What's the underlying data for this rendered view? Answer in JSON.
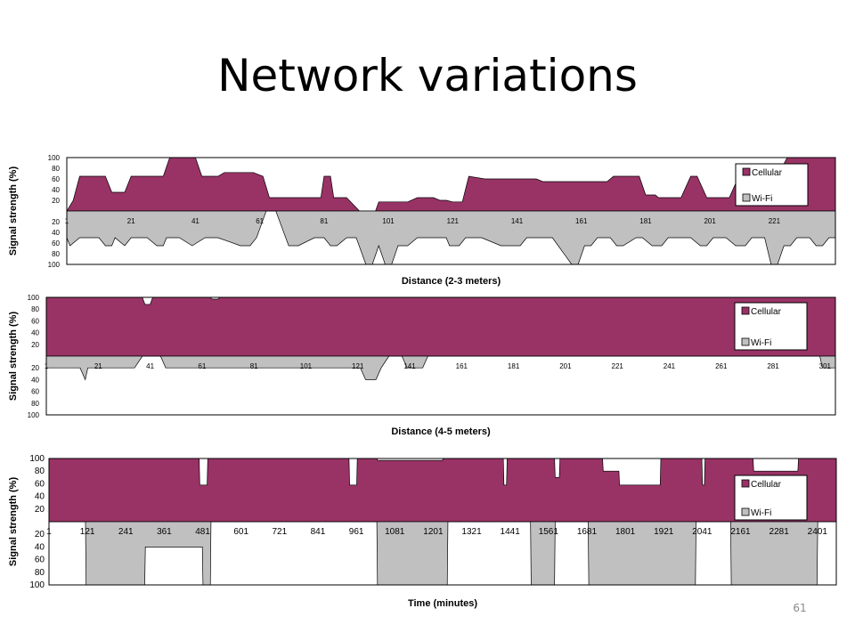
{
  "slide": {
    "title": "Network variations",
    "page_number": "61"
  },
  "colors": {
    "cellular": "#993366",
    "wifi": "#c0c0c0",
    "border": "#000000",
    "background": "#ffffff"
  },
  "chart_data": [
    {
      "type": "area",
      "layout": "mirrored",
      "xlabel": "Distance (2-3 meters)",
      "ylabel": "Signal strength (%)",
      "x_ticks": [
        "1",
        "21",
        "41",
        "61",
        "81",
        "101",
        "121",
        "141",
        "161",
        "181",
        "201",
        "221"
      ],
      "ylim": [
        0,
        100
      ],
      "y_ticks": [
        "20",
        "40",
        "60",
        "80",
        "100"
      ],
      "legend": {
        "position": "inside-right",
        "entries": [
          "Cellular",
          "Wi-Fi"
        ]
      },
      "x_count": 240,
      "series": [
        {
          "name": "Cellular",
          "direction": "up",
          "points": [
            [
              1,
              0
            ],
            [
              3,
              20
            ],
            [
              5,
              65
            ],
            [
              13,
              65
            ],
            [
              15,
              35
            ],
            [
              19,
              35
            ],
            [
              21,
              65
            ],
            [
              31,
              65
            ],
            [
              33,
              100
            ],
            [
              41,
              100
            ],
            [
              43,
              65
            ],
            [
              48,
              65
            ],
            [
              50,
              72
            ],
            [
              59,
              72
            ],
            [
              62,
              65
            ],
            [
              64,
              25
            ],
            [
              80,
              25
            ],
            [
              81,
              65
            ],
            [
              83,
              65
            ],
            [
              84,
              25
            ],
            [
              88,
              25
            ],
            [
              92,
              0
            ],
            [
              97,
              0
            ],
            [
              98,
              17
            ],
            [
              107,
              17
            ],
            [
              110,
              25
            ],
            [
              115,
              25
            ],
            [
              117,
              20
            ],
            [
              119,
              20
            ],
            [
              121,
              17
            ],
            [
              124,
              17
            ],
            [
              126,
              65
            ],
            [
              131,
              60
            ],
            [
              147,
              60
            ],
            [
              149,
              55
            ],
            [
              169,
              55
            ],
            [
              171,
              65
            ],
            [
              179,
              65
            ],
            [
              181,
              30
            ],
            [
              184,
              30
            ],
            [
              185,
              25
            ],
            [
              187,
              25
            ],
            [
              190,
              25
            ],
            [
              192,
              25
            ],
            [
              195,
              65
            ],
            [
              197,
              65
            ],
            [
              200,
              25
            ],
            [
              207,
              25
            ],
            [
              210,
              65
            ],
            [
              222,
              65
            ],
            [
              225,
              100
            ],
            [
              240,
              100
            ]
          ]
        },
        {
          "name": "Wi-Fi",
          "direction": "down",
          "points": [
            [
              1,
              50
            ],
            [
              2,
              65
            ],
            [
              5,
              50
            ],
            [
              11,
              50
            ],
            [
              13,
              65
            ],
            [
              15,
              65
            ],
            [
              16,
              50
            ],
            [
              19,
              65
            ],
            [
              21,
              50
            ],
            [
              26,
              50
            ],
            [
              29,
              65
            ],
            [
              31,
              65
            ],
            [
              32,
              50
            ],
            [
              36,
              50
            ],
            [
              40,
              65
            ],
            [
              44,
              50
            ],
            [
              48,
              50
            ],
            [
              55,
              65
            ],
            [
              58,
              65
            ],
            [
              60,
              50
            ],
            [
              63,
              0
            ],
            [
              66,
              0
            ],
            [
              70,
              65
            ],
            [
              73,
              65
            ],
            [
              78,
              50
            ],
            [
              81,
              50
            ],
            [
              83,
              65
            ],
            [
              85,
              65
            ],
            [
              88,
              50
            ],
            [
              91,
              50
            ],
            [
              94,
              100
            ],
            [
              96,
              100
            ],
            [
              98,
              65
            ],
            [
              100,
              100
            ],
            [
              102,
              100
            ],
            [
              104,
              65
            ],
            [
              107,
              65
            ],
            [
              110,
              50
            ],
            [
              119,
              50
            ],
            [
              120,
              65
            ],
            [
              123,
              65
            ],
            [
              125,
              50
            ],
            [
              130,
              50
            ],
            [
              136,
              65
            ],
            [
              142,
              65
            ],
            [
              144,
              50
            ],
            [
              152,
              50
            ],
            [
              158,
              100
            ],
            [
              160,
              100
            ],
            [
              162,
              65
            ],
            [
              164,
              65
            ],
            [
              166,
              50
            ],
            [
              170,
              50
            ],
            [
              172,
              65
            ],
            [
              174,
              65
            ],
            [
              178,
              50
            ],
            [
              180,
              50
            ],
            [
              183,
              65
            ],
            [
              186,
              65
            ],
            [
              188,
              50
            ],
            [
              195,
              50
            ],
            [
              198,
              65
            ],
            [
              200,
              65
            ],
            [
              202,
              50
            ],
            [
              206,
              50
            ],
            [
              209,
              65
            ],
            [
              212,
              65
            ],
            [
              214,
              50
            ],
            [
              218,
              50
            ],
            [
              220,
              100
            ],
            [
              222,
              100
            ],
            [
              224,
              65
            ],
            [
              226,
              65
            ],
            [
              228,
              50
            ],
            [
              232,
              50
            ],
            [
              234,
              65
            ],
            [
              236,
              65
            ],
            [
              238,
              50
            ],
            [
              240,
              50
            ]
          ]
        }
      ]
    },
    {
      "type": "area",
      "layout": "mirrored",
      "xlabel": "Distance (4-5 meters)",
      "ylabel": "Signal strength (%)",
      "x_ticks": [
        "1",
        "21",
        "41",
        "61",
        "81",
        "101",
        "121",
        "141",
        "161",
        "181",
        "201",
        "221",
        "241",
        "261",
        "281",
        "301"
      ],
      "ylim": [
        0,
        100
      ],
      "y_ticks": [
        "20",
        "40",
        "60",
        "80",
        "100"
      ],
      "legend": {
        "position": "inside-right",
        "entries": [
          "Cellular",
          "Wi-Fi"
        ]
      },
      "x_count": 305,
      "series": [
        {
          "name": "Cellular",
          "direction": "up",
          "points": [
            [
              1,
              100
            ],
            [
              38,
              100
            ],
            [
              39,
              88
            ],
            [
              41,
              88
            ],
            [
              42,
              100
            ],
            [
              64,
              100
            ],
            [
              65,
              97
            ],
            [
              67,
              97
            ],
            [
              68,
              100
            ],
            [
              305,
              100
            ]
          ]
        },
        {
          "name": "Wi-Fi",
          "direction": "down",
          "points": [
            [
              1,
              20
            ],
            [
              14,
              20
            ],
            [
              16,
              40
            ],
            [
              17,
              20
            ],
            [
              35,
              20
            ],
            [
              38,
              0
            ],
            [
              45,
              0
            ],
            [
              47,
              20
            ],
            [
              122,
              20
            ],
            [
              124,
              40
            ],
            [
              128,
              40
            ],
            [
              130,
              20
            ],
            [
              133,
              0
            ],
            [
              138,
              0
            ],
            [
              140,
              20
            ],
            [
              146,
              20
            ],
            [
              148,
              0
            ],
            [
              299,
              0
            ],
            [
              300,
              20
            ],
            [
              305,
              20
            ]
          ]
        }
      ]
    },
    {
      "type": "area",
      "layout": "mirrored",
      "xlabel": "Time (minutes)",
      "ylabel": "Signal strength (%)",
      "x_ticks": [
        "1",
        "121",
        "241",
        "361",
        "481",
        "601",
        "721",
        "841",
        "961",
        "1081",
        "1201",
        "1321",
        "1441",
        "1561",
        "1681",
        "1801",
        "1921",
        "2041",
        "2161",
        "2281",
        "2401"
      ],
      "ylim": [
        0,
        100
      ],
      "y_ticks": [
        "20",
        "40",
        "60",
        "80",
        "100"
      ],
      "legend": {
        "position": "inside-right",
        "entries": [
          "Cellular",
          "Wi-Fi"
        ]
      },
      "x_count": 2460,
      "series": [
        {
          "name": "Cellular",
          "direction": "up",
          "points": [
            [
              1,
              100
            ],
            [
              470,
              100
            ],
            [
              472,
              58
            ],
            [
              495,
              58
            ],
            [
              497,
              100
            ],
            [
              938,
              100
            ],
            [
              940,
              58
            ],
            [
              962,
              58
            ],
            [
              964,
              100
            ],
            [
              1025,
              100
            ],
            [
              1027,
              97
            ],
            [
              1230,
              97
            ],
            [
              1232,
              100
            ],
            [
              1420,
              100
            ],
            [
              1422,
              58
            ],
            [
              1430,
              58
            ],
            [
              1432,
              100
            ],
            [
              1580,
              100
            ],
            [
              1582,
              70
            ],
            [
              1595,
              70
            ],
            [
              1597,
              100
            ],
            [
              1730,
              100
            ],
            [
              1732,
              80
            ],
            [
              1781,
              80
            ],
            [
              1783,
              58
            ],
            [
              1910,
              58
            ],
            [
              1912,
              100
            ],
            [
              2040,
              100
            ],
            [
              2042,
              58
            ],
            [
              2048,
              58
            ],
            [
              2050,
              100
            ],
            [
              2200,
              100
            ],
            [
              2202,
              80
            ],
            [
              2340,
              80
            ],
            [
              2342,
              100
            ],
            [
              2460,
              100
            ]
          ]
        },
        {
          "name": "Wi-Fi",
          "direction": "down",
          "points": [
            [
              1,
              0
            ],
            [
              115,
              0
            ],
            [
              117,
              100
            ],
            [
              300,
              100
            ],
            [
              302,
              40
            ],
            [
              480,
              40
            ],
            [
              482,
              100
            ],
            [
              505,
              100
            ],
            [
              507,
              0
            ],
            [
              1025,
              0
            ],
            [
              1027,
              100
            ],
            [
              1245,
              100
            ],
            [
              1247,
              0
            ],
            [
              1505,
              0
            ],
            [
              1507,
              100
            ],
            [
              1580,
              100
            ],
            [
              1582,
              0
            ],
            [
              1685,
              0
            ],
            [
              1687,
              100
            ],
            [
              2020,
              100
            ],
            [
              2022,
              0
            ],
            [
              2130,
              0
            ],
            [
              2132,
              100
            ],
            [
              2400,
              100
            ],
            [
              2402,
              0
            ],
            [
              2460,
              0
            ]
          ]
        }
      ]
    }
  ]
}
